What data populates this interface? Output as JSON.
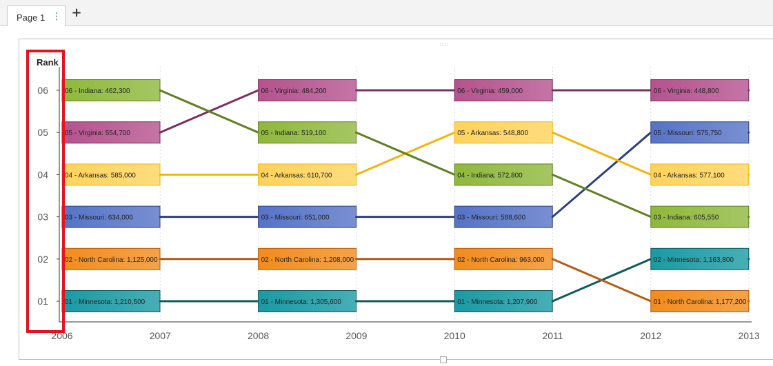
{
  "tabs": [
    {
      "label": "Page 1",
      "menu_icon": "vertical-ellipsis-icon"
    }
  ],
  "add_tab_icon": "plus-icon",
  "grip_glyph": "::::",
  "chart_data": {
    "type": "bump",
    "ylabel": "Rank",
    "xlabel": "",
    "x": [
      "2006",
      "2007",
      "2008",
      "2009",
      "2010",
      "2011",
      "2012",
      "2013"
    ],
    "ranks": [
      "01",
      "02",
      "03",
      "04",
      "05",
      "06"
    ],
    "grid": "vertical dashed lines at each year",
    "series": [
      {
        "name": "Minnesota",
        "color": "#1a9aa3",
        "line_color": "#0d5b5e",
        "points": [
          {
            "year": "2006",
            "rank": 1,
            "value": 1210500,
            "label": "01 - Minnesota: 1,210,500"
          },
          {
            "year": "2008",
            "rank": 1,
            "value": 1305600,
            "label": "01 - Minnesota: 1,305,600"
          },
          {
            "year": "2010",
            "rank": 1,
            "value": 1207900,
            "label": "01 - Minnesota: 1,207,900"
          },
          {
            "year": "2012",
            "rank": 2,
            "value": 1163800,
            "label": "02 - Minnesota: 1,163,800"
          }
        ]
      },
      {
        "name": "North Carolina",
        "color": "#f28c1c",
        "line_color": "#b85a0f",
        "points": [
          {
            "year": "2006",
            "rank": 2,
            "value": 1125000,
            "label": "02 - North Carolina: 1,125,000"
          },
          {
            "year": "2008",
            "rank": 2,
            "value": 1208000,
            "label": "02 - North Carolina: 1,208,000"
          },
          {
            "year": "2010",
            "rank": 2,
            "value": 963000,
            "label": "02 - North Carolina: 963,000"
          },
          {
            "year": "2012",
            "rank": 1,
            "value": 1177200,
            "label": "01 - North Carolina: 1,177,200"
          }
        ]
      },
      {
        "name": "Missouri",
        "color": "#5673c6",
        "line_color": "#2e3f82",
        "points": [
          {
            "year": "2006",
            "rank": 3,
            "value": 634000,
            "label": "03 - Missouri: 634,000"
          },
          {
            "year": "2008",
            "rank": 3,
            "value": 651000,
            "label": "03 - Missouri: 651,000"
          },
          {
            "year": "2010",
            "rank": 3,
            "value": 588600,
            "label": "03 - Missouri: 588,600"
          },
          {
            "year": "2012",
            "rank": 5,
            "value": 575750,
            "label": "05 - Missouri: 575,750"
          }
        ]
      },
      {
        "name": "Arkansas",
        "color": "#ffd35c",
        "line_color": "#f5b40a",
        "points": [
          {
            "year": "2006",
            "rank": 4,
            "value": 585000,
            "label": "04 - Arkansas: 585,000"
          },
          {
            "year": "2008",
            "rank": 4,
            "value": 610700,
            "label": "04 - Arkansas: 610,700"
          },
          {
            "year": "2010",
            "rank": 5,
            "value": 548800,
            "label": "05 - Arkansas: 548,800"
          },
          {
            "year": "2012",
            "rank": 4,
            "value": 577100,
            "label": "04 - Arkansas: 577,100"
          }
        ]
      },
      {
        "name": "Virginia",
        "color": "#b5528e",
        "line_color": "#7a2d5f",
        "points": [
          {
            "year": "2006",
            "rank": 5,
            "value": 554700,
            "label": "05 - Virginia: 554,700"
          },
          {
            "year": "2008",
            "rank": 6,
            "value": 484200,
            "label": "06 - Virginia: 484,200"
          },
          {
            "year": "2010",
            "rank": 6,
            "value": 459000,
            "label": "06 - Virginia: 459,000"
          },
          {
            "year": "2012",
            "rank": 6,
            "value": 448800,
            "label": "06 - Virginia: 448,800"
          }
        ]
      },
      {
        "name": "Indiana",
        "color": "#8fb83c",
        "line_color": "#5f7f22",
        "points": [
          {
            "year": "2006",
            "rank": 6,
            "value": 462300,
            "label": "06 - Indiana: 462,300"
          },
          {
            "year": "2008",
            "rank": 5,
            "value": 519100,
            "label": "05 - Indiana: 519,100"
          },
          {
            "year": "2010",
            "rank": 4,
            "value": 572800,
            "label": "04 - Indiana: 572,800"
          },
          {
            "year": "2012",
            "rank": 3,
            "value": 605550,
            "label": "03 - Indiana: 605,550"
          }
        ]
      }
    ],
    "highlight_color": "#e1151b"
  }
}
